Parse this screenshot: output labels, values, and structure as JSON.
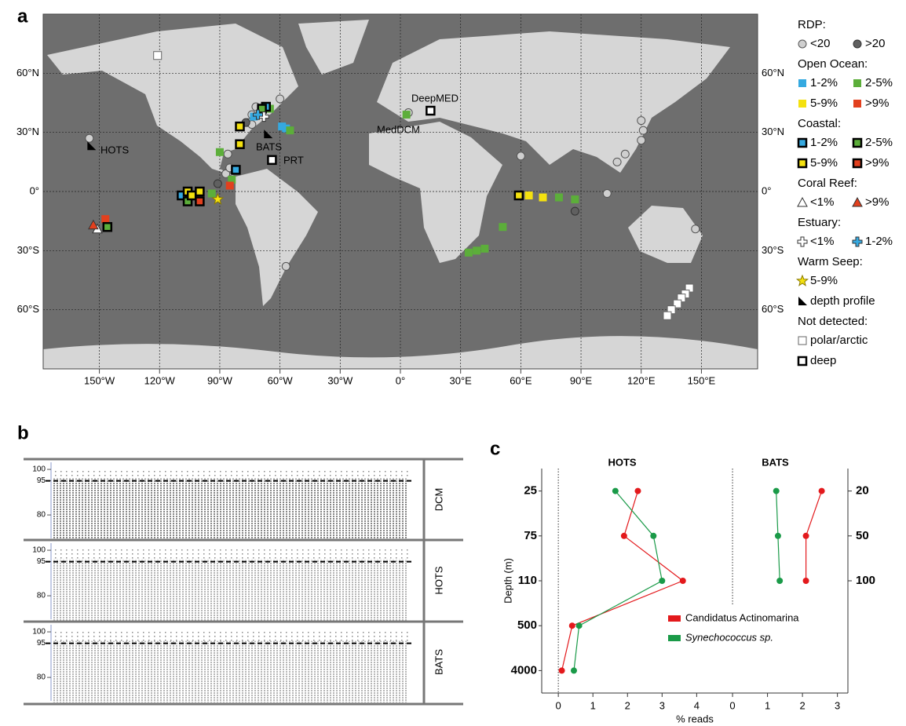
{
  "chart_data": [
    {
      "type": "map",
      "panel": "a",
      "xlim": [
        -178,
        178
      ],
      "ylim": [
        -90,
        90
      ],
      "grid": true,
      "xticks": [
        {
          "value": -150,
          "label": "150°W"
        },
        {
          "value": -120,
          "label": "120°W"
        },
        {
          "value": -90,
          "label": "90°W"
        },
        {
          "value": -60,
          "label": "60°W"
        },
        {
          "value": -30,
          "label": "30°W"
        },
        {
          "value": 0,
          "label": "0°"
        },
        {
          "value": 30,
          "label": "30°E"
        },
        {
          "value": 60,
          "label": "60°E"
        },
        {
          "value": 90,
          "label": "90°E"
        },
        {
          "value": 120,
          "label": "120°E"
        },
        {
          "value": 150,
          "label": "150°E"
        }
      ],
      "yticks": [
        {
          "value": 60,
          "label": "60°N"
        },
        {
          "value": 30,
          "label": "30°N"
        },
        {
          "value": 0,
          "label": "0°"
        },
        {
          "value": -30,
          "label": "30°S"
        },
        {
          "value": -60,
          "label": "60°S"
        }
      ],
      "annotations": [
        "HOTS",
        "BATS",
        "PRT",
        "DeepMED",
        "MedDCM"
      ],
      "legend": [
        {
          "title": "RDP:",
          "items": [
            {
              "label": "<20",
              "shape": "circle",
              "fill": "#cfcfcf",
              "stroke": "#555555",
              "sites": [
                [
                  -155,
                  27
                ],
                [
                  -86,
                  19
                ],
                [
                  -87,
                  9
                ],
                [
                  -85,
                  12
                ],
                [
                  -74,
                  39
                ],
                [
                  -72,
                  43
                ],
                [
                  -76,
                  35
                ],
                [
                  -74,
                  34
                ],
                [
                  -60,
                  47
                ],
                [
                  60,
                  18
                ],
                [
                  120,
                  36
                ],
                [
                  121,
                  31
                ],
                [
                  120,
                  26
                ],
                [
                  112,
                  19
                ],
                [
                  108,
                  15
                ],
                [
                  103,
                  -1
                ],
                [
                  147,
                  -19
                ],
                [
                  -57,
                  -38
                ],
                [
                  4,
                  40
                ]
              ]
            },
            {
              "label": ">20",
              "shape": "circle",
              "fill": "#606060",
              "stroke": "#333333",
              "sites": [
                [
                  -91,
                  4
                ],
                [
                  87,
                  -10
                ],
                [
                  -77,
                  35
                ]
              ]
            }
          ]
        },
        {
          "title": "Open Ocean:",
          "items": [
            {
              "label": "1-2%",
              "shape": "square",
              "fill": "#35a9e0",
              "stroke": "none",
              "sites": [
                [
                  -59,
                  33
                ],
                [
                  -57,
                  32
                ],
                [
                  -73,
                  38
                ]
              ]
            },
            {
              "label": "2-5%",
              "shape": "square",
              "fill": "#5cae3a",
              "stroke": "none",
              "sites": [
                [
                  -65,
                  42
                ],
                [
                  3,
                  39
                ],
                [
                  -90,
                  20
                ],
                [
                  -94,
                  -1
                ],
                [
                  -84,
                  6
                ],
                [
                  79,
                  -3
                ],
                [
                  87,
                  -4
                ],
                [
                  51,
                  -18
                ],
                [
                  42,
                  -29
                ],
                [
                  38,
                  -30
                ],
                [
                  34,
                  -31
                ],
                [
                  -55,
                  31
                ]
              ]
            },
            {
              "label": "5-9%",
              "shape": "square",
              "fill": "#f4e10f",
              "stroke": "none",
              "sites": [
                [
                  71,
                  -3
                ],
                [
                  64,
                  -2
                ]
              ]
            },
            {
              "label": ">9%",
              "shape": "square",
              "fill": "#e2401e",
              "stroke": "none",
              "sites": [
                [
                  -85,
                  3
                ],
                [
                  -147,
                  -14
                ]
              ]
            }
          ]
        },
        {
          "title": "Coastal:",
          "items": [
            {
              "label": "1-2%",
              "shape": "square",
              "fill": "#35a9e0",
              "stroke": "#000000",
              "sites": [
                [
                  -67,
                  43
                ],
                [
                  -82,
                  11
                ],
                [
                  -109,
                  -2
                ]
              ]
            },
            {
              "label": "2-5%",
              "shape": "square",
              "fill": "#5cae3a",
              "stroke": "#000000",
              "sites": [
                [
                  -146,
                  -18
                ],
                [
                  -69,
                  42
                ],
                [
                  -106,
                  -5
                ]
              ]
            },
            {
              "label": "5-9%",
              "shape": "square",
              "fill": "#f4e10f",
              "stroke": "#000000",
              "sites": [
                [
                  -80,
                  33
                ],
                [
                  -80,
                  24
                ],
                [
                  -106,
                  0
                ],
                [
                  -100,
                  0
                ],
                [
                  59,
                  -2
                ],
                [
                  -104,
                  -2
                ]
              ]
            },
            {
              "label": ">9%",
              "shape": "square",
              "fill": "#e2401e",
              "stroke": "#000000",
              "sites": [
                [
                  -100,
                  -5
                ]
              ]
            }
          ]
        },
        {
          "title": "Coral Reef:",
          "items": [
            {
              "label": "<1%",
              "shape": "triangle",
              "fill": "#ffffff",
              "stroke": "#333333",
              "sites": [
                [
                  -151,
                  -19
                ]
              ]
            },
            {
              "label": ">9%",
              "shape": "triangle",
              "fill": "#e2401e",
              "stroke": "#333333",
              "sites": [
                [
                  -153,
                  -17
                ]
              ]
            }
          ]
        },
        {
          "title": "Estuary:",
          "items": [
            {
              "label": "<1%",
              "shape": "cross",
              "fill": "#ffffff",
              "stroke": "#333333",
              "sites": [
                [
                  -68,
                  38
                ]
              ]
            },
            {
              "label": "1-2%",
              "shape": "cross",
              "fill": "#35a9e0",
              "stroke": "#333333",
              "sites": [
                [
                  -71,
                  39
                ]
              ]
            }
          ]
        },
        {
          "title": "Warm Seep:",
          "items": [
            {
              "label": "5-9%",
              "shape": "star",
              "fill": "#f4e10f",
              "stroke": "#8a7a00",
              "sites": [
                [
                  -91,
                  -4
                ]
              ]
            }
          ]
        },
        {
          "items": [
            {
              "label": "depth profile",
              "shape": "flag",
              "fill": "#000000",
              "stroke": "none",
              "sites": [
                [
                  -154,
                  23
                ],
                [
                  -66,
                  29
                ]
              ]
            }
          ]
        },
        {
          "title": "Not detected:",
          "items": [
            {
              "label": "polar/arctic",
              "shape": "square",
              "fill": "#ffffff",
              "stroke": "#666666",
              "sites": [
                [
                  -121,
                  69
                ],
                [
                  144,
                  -49
                ],
                [
                  142,
                  -52
                ],
                [
                  140,
                  -54
                ],
                [
                  138,
                  -57
                ],
                [
                  135,
                  -60
                ],
                [
                  133,
                  -63
                ]
              ]
            },
            {
              "label": "deep",
              "shape": "square",
              "fill": "#ffffff",
              "stroke": "#000000",
              "sites": [
                [
                  15,
                  41
                ],
                [
                  -64,
                  16
                ]
              ]
            }
          ]
        }
      ]
    },
    {
      "type": "recruitment",
      "panel": "b",
      "ylim": [
        69,
        104.5
      ],
      "yticks": [
        80,
        95,
        100
      ],
      "threshold": 95,
      "rows": [
        "DCM",
        "HOTS",
        "BATS"
      ]
    },
    {
      "type": "depth-line",
      "panel": "c",
      "title": "HOTS",
      "ylabel": "Depth (m)",
      "xlabel": "% reads",
      "categories": [
        25,
        75,
        110,
        500,
        4000
      ],
      "xlim": [
        -0.48,
        4.4
      ],
      "xticks": [
        0,
        1,
        2,
        3,
        4
      ],
      "series": [
        {
          "name": "Candidatus Actinomarina",
          "color": "#e3191c",
          "values": [
            2.3,
            1.9,
            3.6,
            0.4,
            0.1
          ]
        },
        {
          "name": "Synechococcus sp.",
          "color": "#1a9a48",
          "values": [
            1.65,
            2.75,
            3.0,
            0.6,
            0.45
          ]
        }
      ]
    },
    {
      "type": "depth-line",
      "title": "BATS",
      "categories": [
        20,
        50,
        100
      ],
      "xlim": [
        -0.63,
        3.3
      ],
      "xticks": [
        0,
        1,
        2,
        3
      ],
      "series": [
        {
          "color": "#e3191c",
          "values": [
            2.55,
            2.1,
            2.1
          ]
        },
        {
          "color": "#1a9a48",
          "values": [
            1.25,
            1.3,
            1.35
          ]
        }
      ]
    }
  ]
}
